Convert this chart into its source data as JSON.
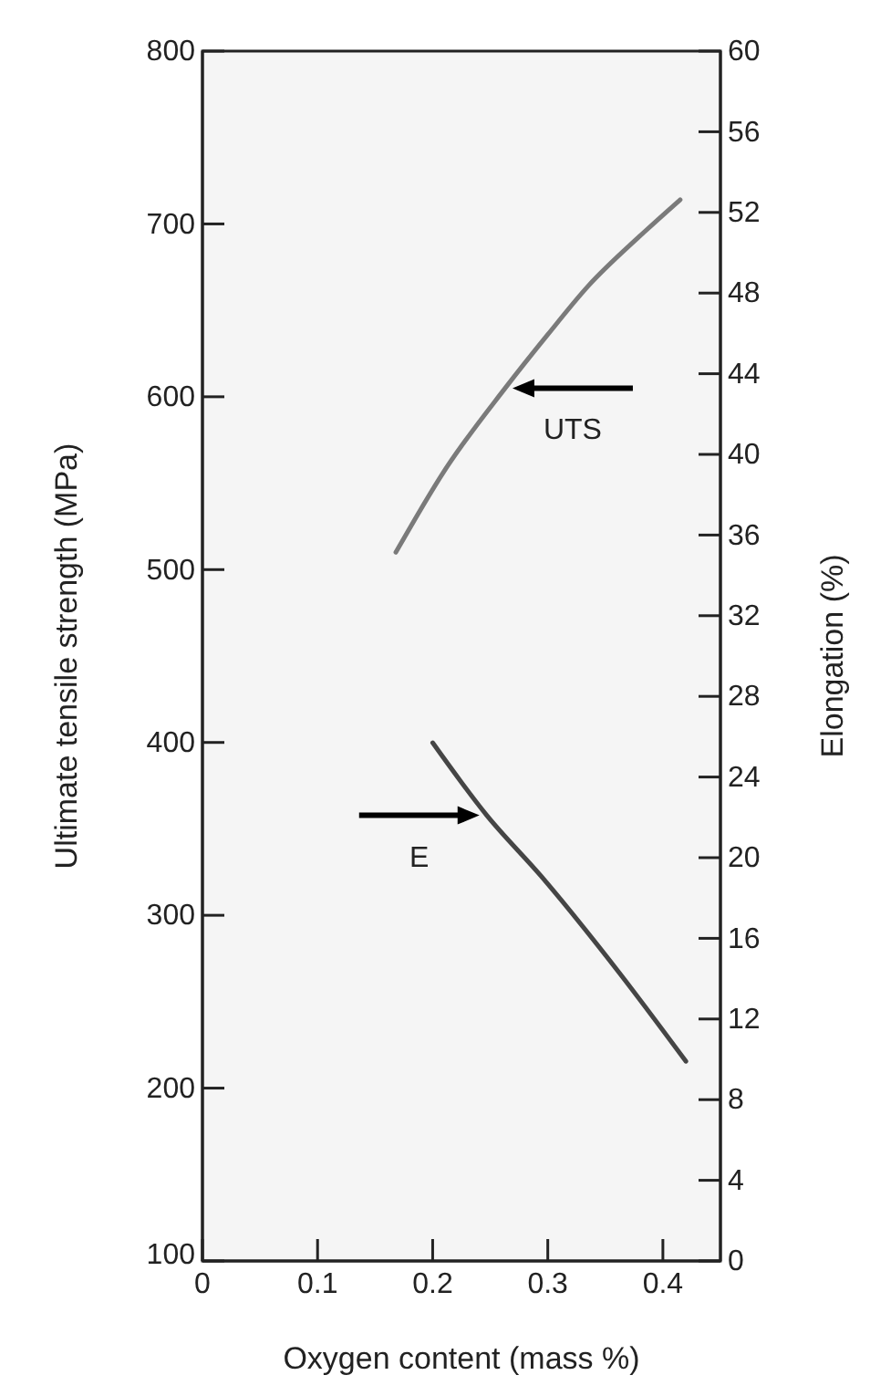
{
  "chart_data": {
    "type": "line",
    "xlabel": "Oxygen content (mass %)",
    "ylabel": "Ultimate tensile strength (MPa)",
    "y2label": "Elongation (%)",
    "xlim": [
      0,
      0.45
    ],
    "xticks": [
      0,
      0.1,
      0.2,
      0.3,
      0.4
    ],
    "ylim": [
      100,
      800
    ],
    "yticks": [
      100,
      200,
      300,
      400,
      500,
      600,
      700,
      800
    ],
    "y2lim": [
      0,
      60
    ],
    "y2ticks": [
      0,
      4,
      8,
      12,
      16,
      20,
      24,
      28,
      32,
      36,
      40,
      44,
      48,
      52,
      56,
      60
    ],
    "marker": "none",
    "line_style": "solid",
    "series": [
      {
        "name": "UTS",
        "color": "#7a7a7a",
        "x": [
          0.168,
          0.21,
          0.263,
          0.3,
          0.335,
          0.38,
          0.415
        ],
        "values": [
          510,
          557,
          605,
          636,
          664,
          693,
          714
        ]
      },
      {
        "name": "E",
        "color": "#454545",
        "axis": "y2",
        "x": [
          0.2,
          0.247,
          0.294,
          0.362,
          0.42
        ],
        "values": [
          25.7,
          22.1,
          19.1,
          14.3,
          9.9
        ]
      }
    ]
  }
}
